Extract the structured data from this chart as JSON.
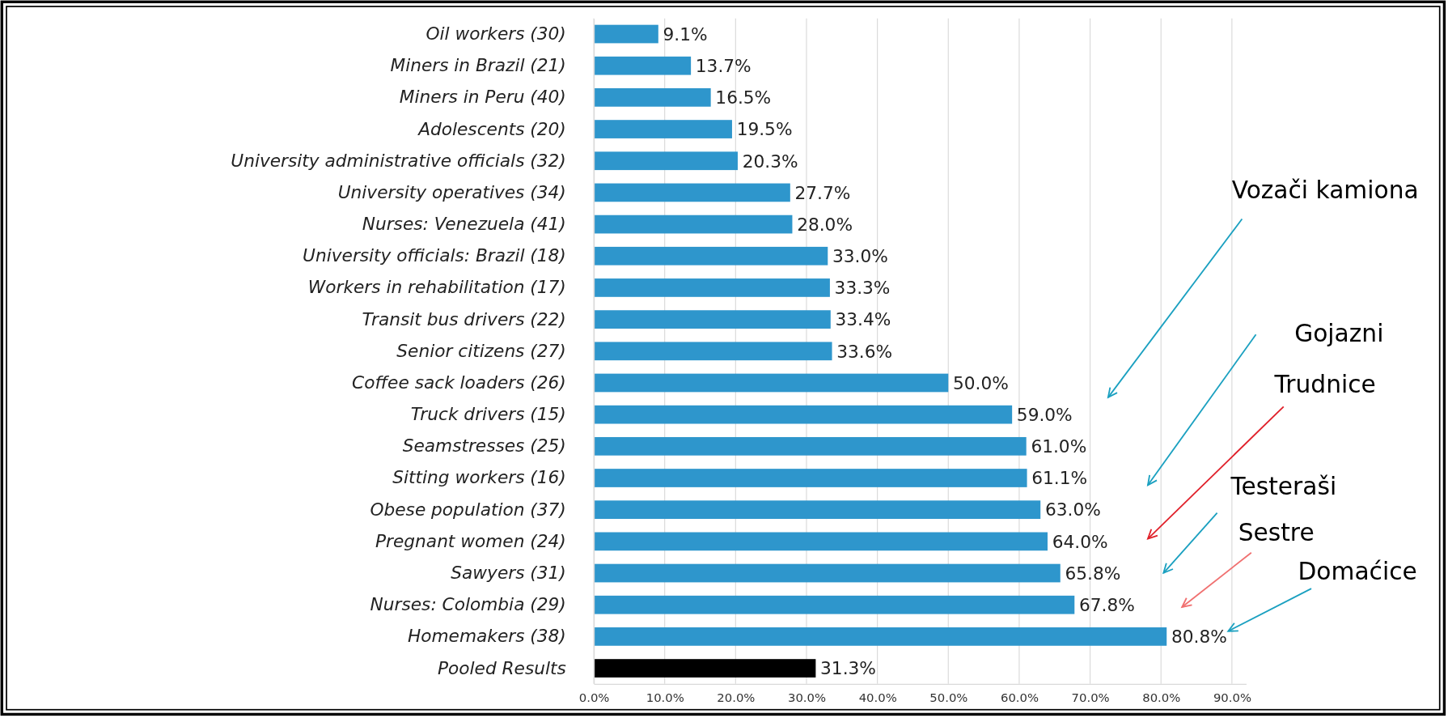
{
  "chart_data": {
    "type": "bar",
    "orientation": "horizontal",
    "categories": [
      "Oil workers (30)",
      "Miners in Brazil (21)",
      "Miners in Peru (40)",
      "Adolescents (20)",
      "University administrative officials (32)",
      "University operatives (34)",
      "Nurses: Venezuela (41)",
      "University officials: Brazil (18)",
      "Workers in rehabilitation (17)",
      "Transit bus drivers (22)",
      "Senior citizens (27)",
      "Coffee sack loaders (26)",
      "Truck drivers (15)",
      "Seamstresses (25)",
      "Sitting workers (16)",
      "Obese population (37)",
      "Pregnant women (24)",
      "Sawyers (31)",
      "Nurses: Colombia (29)",
      "Homemakers (38)",
      "Pooled Results"
    ],
    "values": [
      9.1,
      13.7,
      16.5,
      19.5,
      20.3,
      27.7,
      28.0,
      33.0,
      33.3,
      33.4,
      33.6,
      50.0,
      59.0,
      61.0,
      61.1,
      63.0,
      64.0,
      65.8,
      67.8,
      80.8,
      31.3
    ],
    "value_labels": [
      "9.1%",
      "13.7%",
      "16.5%",
      "19.5%",
      "20.3%",
      "27.7%",
      "28.0%",
      "33.0%",
      "33.3%",
      "33.4%",
      "33.6%",
      "50.0%",
      "59.0%",
      "61.0%",
      "61.1%",
      "63.0%",
      "64.0%",
      "65.8%",
      "67.8%",
      "80.8%",
      "31.3%"
    ],
    "colors": [
      "#2e96cc",
      "#2e96cc",
      "#2e96cc",
      "#2e96cc",
      "#2e96cc",
      "#2e96cc",
      "#2e96cc",
      "#2e96cc",
      "#2e96cc",
      "#2e96cc",
      "#2e96cc",
      "#2e96cc",
      "#2e96cc",
      "#2e96cc",
      "#2e96cc",
      "#2e96cc",
      "#2e96cc",
      "#2e96cc",
      "#2e96cc",
      "#2e96cc",
      "#000000"
    ],
    "xlim": [
      0,
      92
    ],
    "xticks": [
      {
        "value": 0,
        "label": "0.0%"
      },
      {
        "value": 10,
        "label": "10.0%"
      },
      {
        "value": 20,
        "label": "20.0%"
      },
      {
        "value": 30,
        "label": "30.0%"
      },
      {
        "value": 40,
        "label": "40.0%"
      },
      {
        "value": 50,
        "label": "50.0%"
      },
      {
        "value": 60,
        "label": "60.0%"
      },
      {
        "value": 70,
        "label": "70.0%"
      },
      {
        "value": 80,
        "label": "80.0%"
      },
      {
        "value": 90,
        "label": "90.0%"
      }
    ],
    "grid": "x",
    "annotations": [
      "Vozači kamiona",
      "Gojazni",
      "Trudnice",
      "Testeraši",
      "Sestre",
      "Domaćice"
    ]
  }
}
